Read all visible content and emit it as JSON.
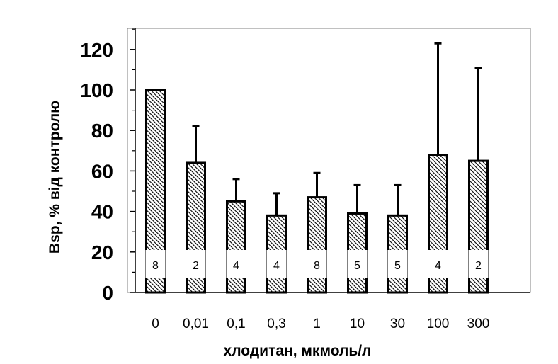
{
  "chart_data": {
    "type": "bar",
    "title": "",
    "xlabel": "хлодитан, мкмоль/л",
    "ylabel": "Bsp, % від контролю",
    "ylim": [
      0,
      130
    ],
    "yticks": [
      0,
      20,
      40,
      60,
      80,
      100,
      120
    ],
    "categories": [
      "0",
      "0,01",
      "0,1",
      "0,3",
      "1",
      "10",
      "30",
      "100",
      "300"
    ],
    "values": [
      100,
      64,
      45,
      38,
      47,
      39,
      38,
      68,
      65
    ],
    "error_upper": [
      100,
      82,
      56,
      49,
      59,
      53,
      53,
      123,
      111
    ],
    "n_labels": [
      "8",
      "2",
      "4",
      "4",
      "8",
      "5",
      "5",
      "4",
      "2"
    ],
    "bar_pattern": "diagonal-hatch",
    "grid": false,
    "legend": "none"
  }
}
